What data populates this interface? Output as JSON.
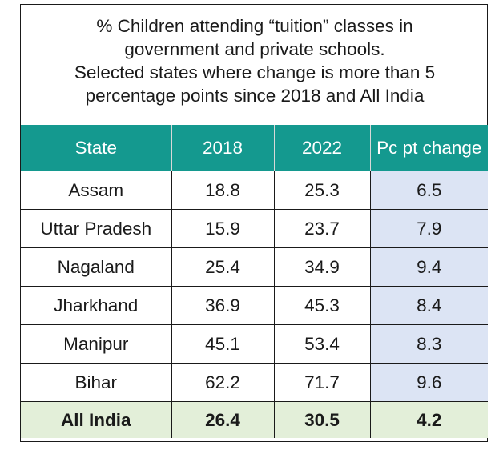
{
  "title_lines": [
    "% Children attending “tuition” classes in",
    "government and private schools.",
    "Selected states where change is more than 5",
    "percentage points since 2018 and All India"
  ],
  "headers": [
    "State",
    "2018",
    "2022",
    "Pc pt change"
  ],
  "rows": [
    {
      "state": "Assam",
      "y2018": "18.8",
      "y2022": "25.3",
      "change": "6.5"
    },
    {
      "state": "Uttar Pradesh",
      "y2018": "15.9",
      "y2022": "23.7",
      "change": "7.9"
    },
    {
      "state": "Nagaland",
      "y2018": "25.4",
      "y2022": "34.9",
      "change": "9.4"
    },
    {
      "state": "Jharkhand",
      "y2018": "36.9",
      "y2022": "45.3",
      "change": "8.4"
    },
    {
      "state": "Manipur",
      "y2018": "45.1",
      "y2022": "53.4",
      "change": "8.3"
    },
    {
      "state": "Bihar",
      "y2018": "62.2",
      "y2022": "71.7",
      "change": "9.6"
    }
  ],
  "total": {
    "state": "All India",
    "y2018": "26.4",
    "y2022": "30.5",
    "change": "4.2"
  },
  "colors": {
    "header_bg": "#14998f",
    "change_bg": "#dce4f4",
    "total_bg": "#e3efd9"
  },
  "chart_data": {
    "type": "table",
    "title": "% Children attending “tuition” classes in government and private schools. Selected states where change is more than 5 percentage points since 2018 and All India",
    "columns": [
      "State",
      "2018",
      "2022",
      "Pc pt change"
    ],
    "rows": [
      [
        "Assam",
        18.8,
        25.3,
        6.5
      ],
      [
        "Uttar Pradesh",
        15.9,
        23.7,
        7.9
      ],
      [
        "Nagaland",
        25.4,
        34.9,
        9.4
      ],
      [
        "Jharkhand",
        36.9,
        45.3,
        8.4
      ],
      [
        "Manipur",
        45.1,
        53.4,
        8.3
      ],
      [
        "Bihar",
        62.2,
        71.7,
        9.6
      ],
      [
        "All India",
        26.4,
        30.5,
        4.2
      ]
    ]
  }
}
